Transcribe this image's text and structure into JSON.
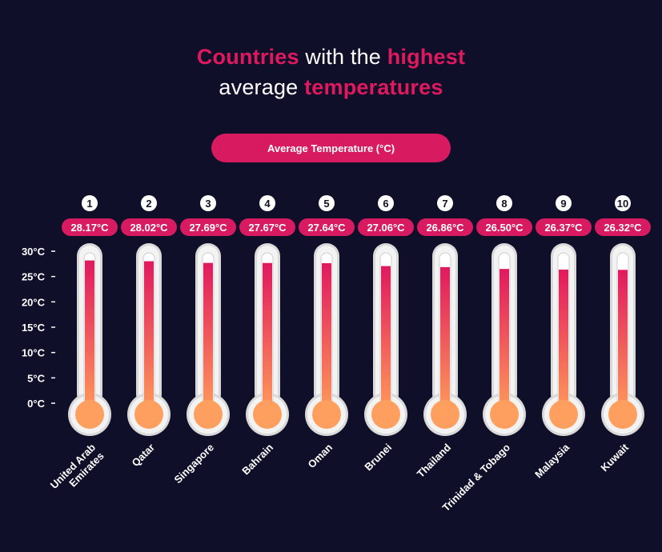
{
  "title": {
    "line1": [
      {
        "text": "Countries",
        "highlight": true
      },
      {
        "text": " with the ",
        "highlight": false
      },
      {
        "text": "highest",
        "highlight": true
      }
    ],
    "line2": [
      {
        "text": "average ",
        "highlight": false
      },
      {
        "text": "temperatures",
        "highlight": true
      }
    ]
  },
  "legend_label": "Average Temperature (°C)",
  "colors": {
    "background": "#0f0f2a",
    "accent": "#d81b60",
    "fill_top": "#e0195f",
    "fill_bottom": "#ffa05a",
    "bulb": "#ff9f5f",
    "glass": "#f3f3f3"
  },
  "chart_data": {
    "type": "bar",
    "title": "Countries with the highest average temperatures",
    "ylabel": "Average Temperature (°C)",
    "ylim": [
      0,
      30
    ],
    "yticks": [
      "0°C",
      "5°C",
      "10°C",
      "15°C",
      "20°C",
      "25°C",
      "30°C"
    ],
    "ranks": [
      "1",
      "2",
      "3",
      "4",
      "5",
      "6",
      "7",
      "8",
      "9",
      "10"
    ],
    "categories": [
      [
        "United Arab",
        "Emirates"
      ],
      [
        "Qatar"
      ],
      [
        "Singapore"
      ],
      [
        "Bahrain"
      ],
      [
        "Oman"
      ],
      [
        "Brunei"
      ],
      [
        "Thailand"
      ],
      [
        "Trinidad & Tobago"
      ],
      [
        "Malaysia"
      ],
      [
        "Kuwait"
      ]
    ],
    "values": [
      28.17,
      28.02,
      27.69,
      27.67,
      27.64,
      27.06,
      26.86,
      26.5,
      26.37,
      26.32
    ],
    "value_labels": [
      "28.17°C",
      "28.02°C",
      "27.69°C",
      "27.67°C",
      "27.64°C",
      "27.06°C",
      "26.86°C",
      "26.50°C",
      "26.37°C",
      "26.32°C"
    ]
  }
}
